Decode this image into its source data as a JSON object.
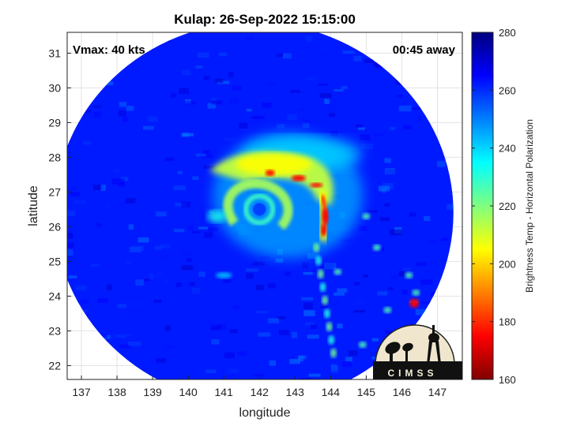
{
  "chart_data": {
    "type": "heatmap",
    "title": "Kulap: 26-Sep-2022 15:15:00",
    "annotations": {
      "vmax": "Vmax: 40 kts",
      "time_away": "00:45 away"
    },
    "xlabel": "longitude",
    "ylabel": "latitude",
    "xlim": [
      136.6,
      147.7
    ],
    "ylim": [
      21.6,
      31.6
    ],
    "xticks": [
      137,
      138,
      139,
      140,
      141,
      142,
      143,
      144,
      145,
      146,
      147
    ],
    "yticks": [
      22,
      23,
      24,
      25,
      26,
      27,
      28,
      29,
      30,
      31
    ],
    "grid": true,
    "colorbar": {
      "label": "Brightness Temp - Horizontal Polarization",
      "min": 160,
      "max": 280,
      "ticks": [
        160,
        180,
        200,
        220,
        240,
        260,
        280
      ],
      "colormap": "jet"
    },
    "swath": {
      "center_lon": 141.85,
      "center_lat": 26.4,
      "radius_deg": 5.6,
      "background_temp": 262
    },
    "storm_center": {
      "lon": 142.0,
      "lat": 26.5
    },
    "logo_text": "CIMSS"
  }
}
